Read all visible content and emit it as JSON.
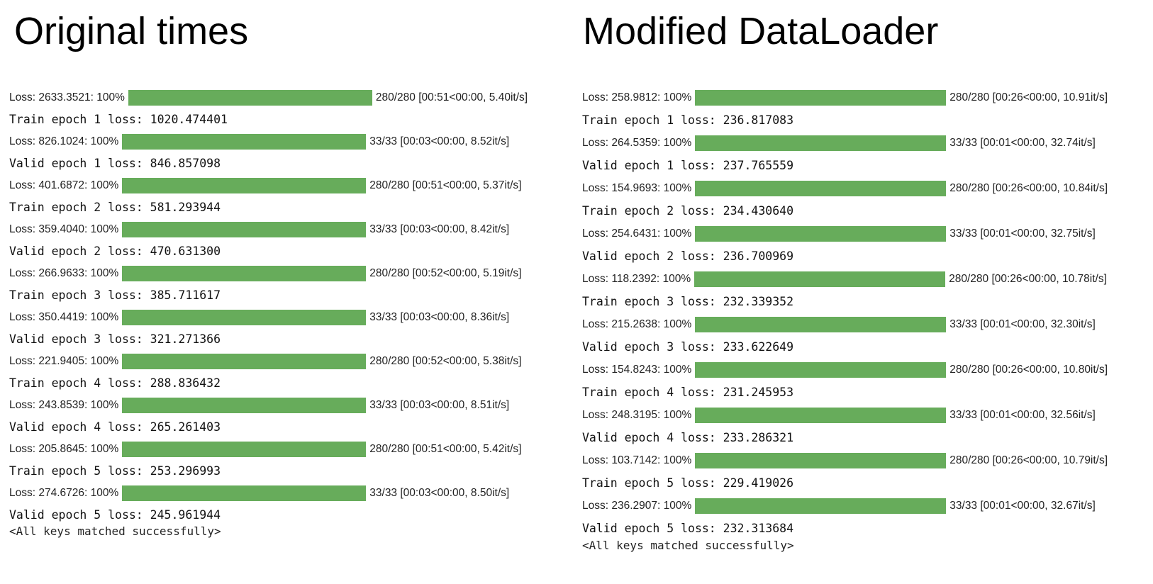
{
  "left": {
    "title": "Original times",
    "bar_color": "#67ac5b",
    "entries": [
      {
        "prefix": "Loss: 2633.3521: 100%",
        "progress": 1.0,
        "suffix": "280/280 [00:51<00:00, 5.40it/s]",
        "line": "Train epoch 1 loss: 1020.474401"
      },
      {
        "prefix": "Loss: 826.1024: 100%",
        "progress": 1.0,
        "suffix": "33/33 [00:03<00:00, 8.52it/s]",
        "line": "Valid epoch 1 loss: 846.857098"
      },
      {
        "prefix": "Loss: 401.6872: 100%",
        "progress": 1.0,
        "suffix": "280/280 [00:51<00:00, 5.37it/s]",
        "line": "Train epoch 2 loss: 581.293944"
      },
      {
        "prefix": "Loss: 359.4040: 100%",
        "progress": 1.0,
        "suffix": "33/33 [00:03<00:00, 8.42it/s]",
        "line": "Valid epoch 2 loss: 470.631300"
      },
      {
        "prefix": "Loss: 266.9633: 100%",
        "progress": 1.0,
        "suffix": "280/280 [00:52<00:00, 5.19it/s]",
        "line": "Train epoch 3 loss: 385.711617"
      },
      {
        "prefix": "Loss: 350.4419: 100%",
        "progress": 1.0,
        "suffix": "33/33 [00:03<00:00, 8.36it/s]",
        "line": "Valid epoch 3 loss: 321.271366"
      },
      {
        "prefix": "Loss: 221.9405: 100%",
        "progress": 1.0,
        "suffix": "280/280 [00:52<00:00, 5.38it/s]",
        "line": "Train epoch 4 loss: 288.836432"
      },
      {
        "prefix": "Loss: 243.8539: 100%",
        "progress": 1.0,
        "suffix": "33/33 [00:03<00:00, 8.51it/s]",
        "line": "Valid epoch 4 loss: 265.261403"
      },
      {
        "prefix": "Loss: 205.8645: 100%",
        "progress": 1.0,
        "suffix": "280/280 [00:51<00:00, 5.42it/s]",
        "line": "Train epoch 5 loss: 253.296993"
      },
      {
        "prefix": "Loss: 274.6726: 100%",
        "progress": 1.0,
        "suffix": "33/33 [00:03<00:00, 8.50it/s]",
        "line": "Valid epoch 5 loss: 245.961944"
      }
    ],
    "final": "<All keys matched successfully>"
  },
  "right": {
    "title": "Modified DataLoader",
    "bar_color": "#67ac5b",
    "entries": [
      {
        "prefix": "Loss: 258.9812: 100%",
        "progress": 1.0,
        "suffix": "280/280 [00:26<00:00, 10.91it/s]",
        "line": "Train epoch 1 loss: 236.817083"
      },
      {
        "prefix": "Loss: 264.5359: 100%",
        "progress": 1.0,
        "suffix": "33/33 [00:01<00:00, 32.74it/s]",
        "line": "Valid epoch 1 loss: 237.765559"
      },
      {
        "prefix": "Loss: 154.9693: 100%",
        "progress": 1.0,
        "suffix": "280/280 [00:26<00:00, 10.84it/s]",
        "line": "Train epoch 2 loss: 234.430640"
      },
      {
        "prefix": "Loss: 254.6431: 100%",
        "progress": 1.0,
        "suffix": "33/33 [00:01<00:00, 32.75it/s]",
        "line": "Valid epoch 2 loss: 236.700969"
      },
      {
        "prefix": "Loss: 118.2392: 100%",
        "progress": 1.0,
        "suffix": "280/280 [00:26<00:00, 10.78it/s]",
        "line": "Train epoch 3 loss: 232.339352"
      },
      {
        "prefix": "Loss: 215.2638: 100%",
        "progress": 1.0,
        "suffix": "33/33 [00:01<00:00, 32.30it/s]",
        "line": "Valid epoch 3 loss: 233.622649"
      },
      {
        "prefix": "Loss: 154.8243: 100%",
        "progress": 1.0,
        "suffix": "280/280 [00:26<00:00, 10.80it/s]",
        "line": "Train epoch 4 loss: 231.245953"
      },
      {
        "prefix": "Loss: 248.3195: 100%",
        "progress": 1.0,
        "suffix": "33/33 [00:01<00:00, 32.56it/s]",
        "line": "Valid epoch 4 loss: 233.286321"
      },
      {
        "prefix": "Loss: 103.7142: 100%",
        "progress": 1.0,
        "suffix": "280/280 [00:26<00:00, 10.79it/s]",
        "line": "Train epoch 5 loss: 229.419026"
      },
      {
        "prefix": "Loss: 236.2907: 100%",
        "progress": 1.0,
        "suffix": "33/33 [00:01<00:00, 32.67it/s]",
        "line": "Valid epoch 5 loss: 232.313684"
      }
    ],
    "final": "<All keys matched successfully>"
  }
}
